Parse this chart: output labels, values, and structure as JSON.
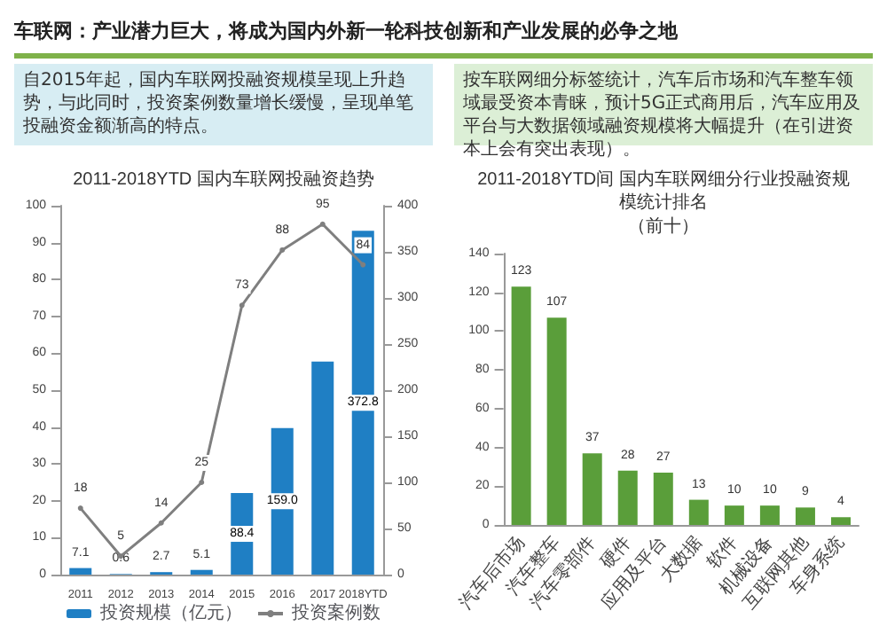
{
  "chart_data": [
    {
      "type": "bar",
      "title": "2011-2018YTD 国内车联网投融资趋势",
      "annotations": [
        "车联网：产业潜力巨大，将成为国内外新一轮科技创新和产业发展的必争之地",
        "自2015年起，国内车联网投融资规模呈现上升趋势，与此同时，投资案例数量增长缓慢，呈现单笔投融资金额渐高的特点。"
      ],
      "categories": [
        "2011",
        "2012",
        "2013",
        "2014",
        "2015",
        "2016",
        "2017",
        "2018YTD"
      ],
      "series": [
        {
          "name": "投资规模（亿元）",
          "type": "bar",
          "axis": "y2",
          "color": "#1f7fc4",
          "values": [
            7.1,
            0.6,
            2.7,
            5.1,
            88.4,
            159.0,
            231,
            372.8
          ],
          "value_labels": [
            "7.1",
            "0.6",
            "2.7",
            "5.1",
            "88.4",
            "159.0",
            null,
            "372.8"
          ]
        },
        {
          "name": "投资案例数",
          "type": "line",
          "color": "#7f7f7f",
          "marker": "circle",
          "values": [
            18,
            5,
            14,
            25,
            73,
            88,
            95,
            84
          ],
          "value_labels": [
            "18",
            "5",
            "14",
            "25",
            "73",
            "88",
            "95",
            "84"
          ]
        }
      ],
      "ylim": [
        0,
        100
      ],
      "yticks": [
        0,
        10,
        20,
        30,
        40,
        50,
        60,
        70,
        80,
        90,
        100
      ],
      "y2lim": [
        0,
        400
      ],
      "y2ticks": [
        0,
        50,
        100,
        150,
        200,
        250,
        300,
        350,
        400
      ],
      "legend": "bottom",
      "grid": false
    },
    {
      "type": "bar",
      "title": "2011-2018YTD间 国内车联网细分行业投融资规模统计排名",
      "subtitle": "（前十）",
      "annotations": [
        "按车联网细分标签统计，汽车后市场和汽车整车领域最受资本青睐，预计5G正式商用后，汽车应用及平台与大数据领域融资规模将大幅提升（在引进资本上会有突出表现）。"
      ],
      "categories": [
        "汽车后市场",
        "汽车整车",
        "汽车零部件",
        "硬件",
        "应用及平台",
        "大数据",
        "软件",
        "机械设备",
        "互联网其他",
        "车身系统"
      ],
      "values": [
        123,
        107,
        37,
        28,
        27,
        13,
        10,
        10,
        9,
        4
      ],
      "color": "#5a9e3a",
      "data_labels": true,
      "ylim": [
        0,
        140
      ],
      "yticks": [
        0,
        20,
        40,
        60,
        80,
        100,
        120,
        140
      ],
      "grid": false
    }
  ]
}
